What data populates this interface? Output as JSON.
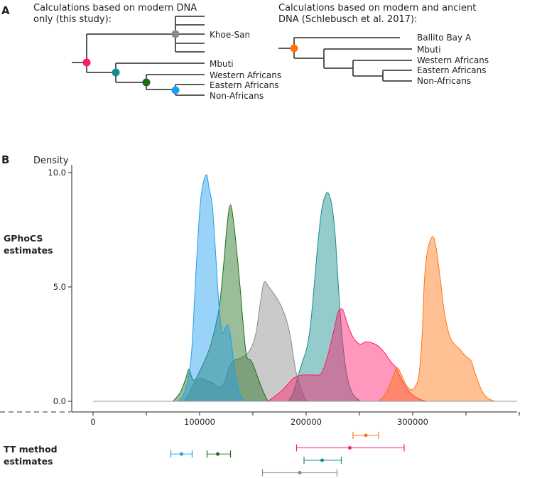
{
  "panel_a": {
    "label": "A",
    "left_tree": {
      "title_line1": "Calculations based on modern DNA",
      "title_line2": "only (this study):",
      "leaves": [
        "Khoe-San",
        "Mbuti",
        "Western Africans",
        "Eastern Africans",
        "Non-Africans"
      ]
    },
    "right_tree": {
      "title_line1": "Calculations based on modern and ancient",
      "title_line2": "DNA (Schlebusch et al. 2017):",
      "leaves": [
        "Ballito Bay A",
        "Mbuti",
        "Western Africans",
        "Eastern Africans",
        "Non-Africans"
      ]
    }
  },
  "panel_b": {
    "label": "B",
    "gphocs_label_line1": "GPhoCS",
    "gphocs_label_line2": "estimates",
    "tt_label_line1": "TT method",
    "tt_label_line2": "estimates"
  },
  "colors": {
    "pink": "#ff1a6a",
    "teal": "#168c8c",
    "green": "#1c6e1c",
    "blue": "#1e9ef0",
    "gray": "#8a8a8a",
    "orange": "#ff7410"
  },
  "chart_data": {
    "type": "area",
    "title": "",
    "xlabel": "",
    "ylabel": "Density",
    "xlim": [
      -20000,
      400000
    ],
    "ylim": [
      0,
      10
    ],
    "x_ticks": [
      0,
      50000,
      100000,
      150000,
      200000,
      250000,
      300000,
      350000,
      400000
    ],
    "x_tick_labels": [
      "0",
      "",
      "100000",
      "",
      "200000",
      "",
      "300000",
      "",
      ""
    ],
    "y_ticks": [
      0,
      5,
      10
    ],
    "y_tick_labels": [
      "0.0",
      "5.0",
      "10.0"
    ],
    "grid": false,
    "series": [
      {
        "name": "gray",
        "node": "Khoe-San split",
        "color_key": "gray",
        "points": [
          [
            85000,
            0
          ],
          [
            90000,
            0.3
          ],
          [
            95000,
            0.8
          ],
          [
            101000,
            1.0
          ],
          [
            106000,
            0.9
          ],
          [
            112000,
            0.8
          ],
          [
            119000,
            0.6
          ],
          [
            124000,
            0.9
          ],
          [
            128000,
            1.5
          ],
          [
            133000,
            1.8
          ],
          [
            139000,
            1.9
          ],
          [
            145000,
            2.1
          ],
          [
            149000,
            2.4
          ],
          [
            153000,
            3.0
          ],
          [
            157000,
            4.3
          ],
          [
            160500,
            5.2
          ],
          [
            165000,
            5.0
          ],
          [
            169000,
            4.75
          ],
          [
            174000,
            4.4
          ],
          [
            179000,
            3.9
          ],
          [
            183000,
            3.3
          ],
          [
            186000,
            2.6
          ],
          [
            190000,
            1.4
          ],
          [
            194000,
            0.7
          ],
          [
            199000,
            0.1
          ],
          [
            203000,
            0
          ]
        ]
      },
      {
        "name": "green",
        "node": "Western Africans split",
        "color_key": "green",
        "points": [
          [
            75000,
            0
          ],
          [
            82000,
            0.4
          ],
          [
            87000,
            1.0
          ],
          [
            90000,
            1.4
          ],
          [
            93000,
            1.0
          ],
          [
            96000,
            0.95
          ],
          [
            100000,
            1.3
          ],
          [
            105000,
            1.8
          ],
          [
            110000,
            2.4
          ],
          [
            115000,
            3.3
          ],
          [
            119000,
            4.3
          ],
          [
            123000,
            6.2
          ],
          [
            126000,
            7.8
          ],
          [
            129000,
            8.6
          ],
          [
            132000,
            7.8
          ],
          [
            135000,
            6.5
          ],
          [
            138000,
            5.0
          ],
          [
            141000,
            3.3
          ],
          [
            144000,
            2.0
          ],
          [
            148000,
            1.8
          ],
          [
            151000,
            1.5
          ],
          [
            155000,
            1.0
          ],
          [
            159000,
            0.5
          ],
          [
            164000,
            0
          ]
        ]
      },
      {
        "name": "blue",
        "node": "Eastern Africans / Non-Africans split",
        "color_key": "blue",
        "points": [
          [
            80000,
            0
          ],
          [
            85000,
            0.3
          ],
          [
            90000,
            1.2
          ],
          [
            93000,
            2.5
          ],
          [
            97000,
            6.0
          ],
          [
            101000,
            8.8
          ],
          [
            106000,
            9.9
          ],
          [
            109000,
            9.3
          ],
          [
            112000,
            8.5
          ],
          [
            115000,
            6.5
          ],
          [
            118000,
            4.3
          ],
          [
            121000,
            3.0
          ],
          [
            124000,
            3.2
          ],
          [
            127000,
            3.3
          ],
          [
            130000,
            2.5
          ],
          [
            133000,
            1.3
          ],
          [
            137000,
            0.4
          ],
          [
            142000,
            0
          ]
        ]
      },
      {
        "name": "teal",
        "node": "Mbuti split",
        "color_key": "teal",
        "points": [
          [
            183000,
            0
          ],
          [
            188000,
            0.4
          ],
          [
            193000,
            1.2
          ],
          [
            197000,
            1.8
          ],
          [
            200500,
            2.3
          ],
          [
            204000,
            3.3
          ],
          [
            208000,
            5.3
          ],
          [
            211000,
            6.9
          ],
          [
            214700,
            8.4
          ],
          [
            218000,
            9.0
          ],
          [
            220700,
            9.1
          ],
          [
            224000,
            8.6
          ],
          [
            227000,
            7.4
          ],
          [
            229000,
            6.0
          ],
          [
            231300,
            4.3
          ],
          [
            234000,
            2.7
          ],
          [
            237000,
            1.5
          ],
          [
            240000,
            0.8
          ],
          [
            244000,
            0.3
          ],
          [
            251000,
            0
          ]
        ]
      },
      {
        "name": "pink",
        "node": "Root split (modern DNA)",
        "color_key": "pink",
        "points": [
          [
            164000,
            0
          ],
          [
            173000,
            0.3
          ],
          [
            180000,
            0.6
          ],
          [
            188000,
            1.0
          ],
          [
            196000,
            1.15
          ],
          [
            206000,
            1.15
          ],
          [
            213800,
            1.2
          ],
          [
            219000,
            1.8
          ],
          [
            223000,
            2.5
          ],
          [
            227000,
            3.3
          ],
          [
            230000,
            3.9
          ],
          [
            233800,
            4.04
          ],
          [
            236000,
            3.8
          ],
          [
            239000,
            3.35
          ],
          [
            244000,
            2.8
          ],
          [
            250400,
            2.5
          ],
          [
            256000,
            2.6
          ],
          [
            262000,
            2.55
          ],
          [
            268000,
            2.4
          ],
          [
            274000,
            2.1
          ],
          [
            280000,
            1.7
          ],
          [
            284000,
            1.5
          ],
          [
            288000,
            1.1
          ],
          [
            292700,
            0.7
          ],
          [
            298000,
            0.35
          ],
          [
            306000,
            0.1
          ],
          [
            313000,
            0
          ]
        ]
      },
      {
        "name": "orange",
        "node": "Root split (modern and ancient DNA)",
        "color_key": "orange",
        "points": [
          [
            268000,
            0
          ],
          [
            274000,
            0.3
          ],
          [
            280000,
            0.9
          ],
          [
            285000,
            1.46
          ],
          [
            289000,
            1.2
          ],
          [
            294000,
            0.7
          ],
          [
            299000,
            0.5
          ],
          [
            303000,
            0.7
          ],
          [
            306000,
            1.2
          ],
          [
            309000,
            3.0
          ],
          [
            311000,
            5.3
          ],
          [
            314000,
            6.6
          ],
          [
            318700,
            7.2
          ],
          [
            322000,
            6.7
          ],
          [
            326000,
            5.3
          ],
          [
            330000,
            3.8
          ],
          [
            334700,
            2.85
          ],
          [
            339000,
            2.5
          ],
          [
            343800,
            2.3
          ],
          [
            349000,
            2.0
          ],
          [
            354700,
            1.77
          ],
          [
            358000,
            1.3
          ],
          [
            361300,
            0.87
          ],
          [
            365000,
            0.45
          ],
          [
            370000,
            0.15
          ],
          [
            377000,
            0
          ]
        ]
      }
    ],
    "tt_estimates": [
      {
        "name": "orange",
        "color_key": "orange",
        "mean": 256000,
        "low": 244000,
        "high": 268000,
        "row": 0
      },
      {
        "name": "pink",
        "color_key": "pink",
        "mean": 241000,
        "low": 191000,
        "high": 292000,
        "row": 1
      },
      {
        "name": "blue",
        "color_key": "blue",
        "mean": 83000,
        "low": 73000,
        "high": 93000,
        "row": 1.5
      },
      {
        "name": "green",
        "color_key": "green",
        "mean": 117000,
        "low": 107000,
        "high": 129000,
        "row": 1.5
      },
      {
        "name": "teal",
        "color_key": "teal",
        "mean": 215000,
        "low": 198000,
        "high": 233000,
        "row": 2
      },
      {
        "name": "gray",
        "color_key": "gray",
        "mean": 194000,
        "low": 159000,
        "high": 229000,
        "row": 3
      }
    ]
  }
}
